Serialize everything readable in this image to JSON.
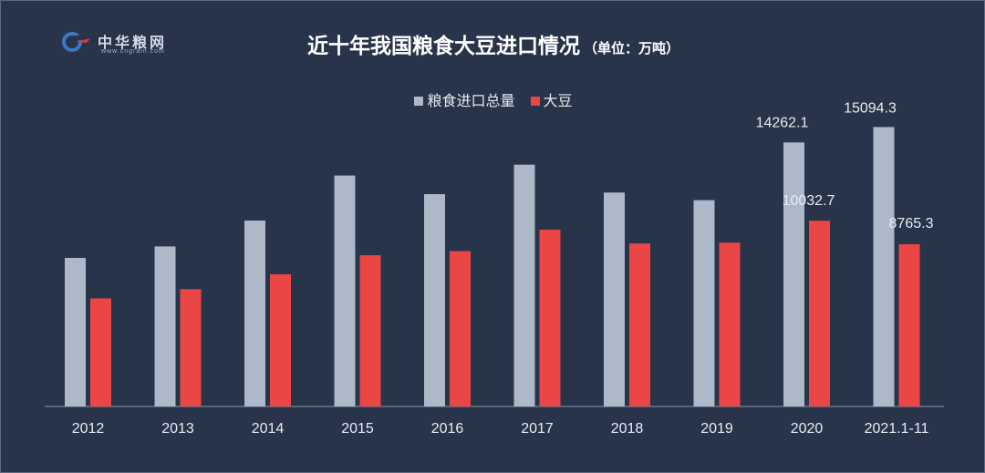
{
  "logo": {
    "name": "中华粮网",
    "url": "www.cngrain.com"
  },
  "chart_data": {
    "type": "bar",
    "title": "近十年我国粮食大豆进口情况",
    "subtitle": "（单位：万吨）",
    "categories": [
      "2012",
      "2013",
      "2014",
      "2015",
      "2016",
      "2017",
      "2018",
      "2019",
      "2020",
      "2021.1-11"
    ],
    "series": [
      {
        "name": "粮食进口总量",
        "color": "#adb8c8",
        "values": [
          8025,
          8645,
          10042,
          12477,
          11468,
          13062,
          11555,
          11144,
          14262.1,
          15094.3
        ],
        "labels": [
          "",
          "",
          "",
          "",
          "",
          "",
          "",
          "",
          "14262.1",
          "15094.3"
        ]
      },
      {
        "name": "大豆",
        "color": "#ea4646",
        "values": [
          5838,
          6338,
          7140,
          8169,
          8391,
          9553,
          8803,
          8851,
          10032.7,
          8765.3
        ],
        "labels": [
          "",
          "",
          "",
          "",
          "",
          "",
          "",
          "",
          "10032.7",
          "8765.3"
        ]
      }
    ],
    "legend_position": "top-center",
    "grid": false,
    "ylim": [
      0,
      16000
    ]
  },
  "colors": {
    "background": "#283449",
    "axis": "#8a93a3"
  }
}
